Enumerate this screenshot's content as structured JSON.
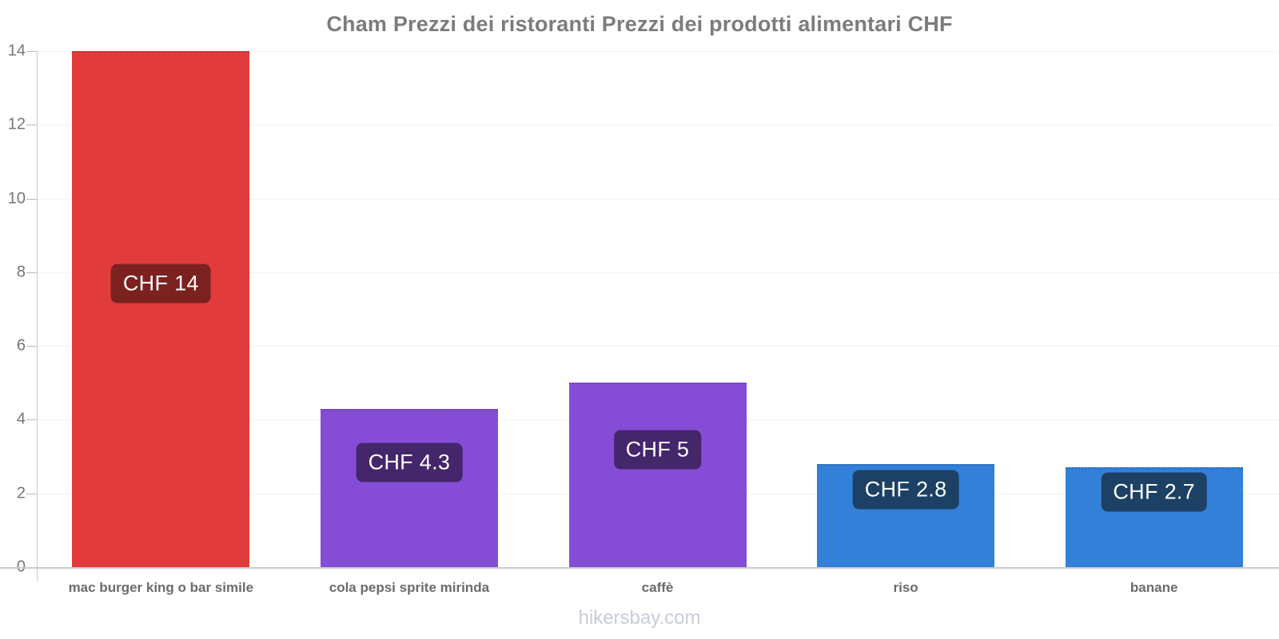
{
  "chart_data": {
    "type": "bar",
    "title": "Cham Prezzi dei ristoranti Prezzi dei prodotti alimentari CHF",
    "categories": [
      "mac burger king o bar simile",
      "cola pepsi sprite mirinda",
      "caffè",
      "riso",
      "banane"
    ],
    "values": [
      14,
      4.3,
      5,
      2.8,
      2.7
    ],
    "value_labels": [
      "CHF 14",
      "CHF 4.3",
      "CHF 5",
      "CHF 2.8",
      "CHF 2.7"
    ],
    "bar_colors": [
      "#e23b3b",
      "#854dd5",
      "#854dd5",
      "#3380d9",
      "#3380d9"
    ],
    "label_bg_colors": [
      "#7b2120",
      "#44266b",
      "#44266b",
      "#1c4164",
      "#1c4164"
    ],
    "currency": "CHF",
    "ylabel": "",
    "xlabel": "",
    "ylim": [
      0,
      14
    ],
    "yticks": [
      0,
      2,
      4,
      6,
      8,
      10,
      12,
      14
    ],
    "grid": true,
    "legend_position": "none"
  },
  "footer": {
    "text": "hikersbay.com"
  },
  "colors": {
    "title_text": "#7c7c7c",
    "axis_line": "#cccccc",
    "baseline": "#c7cad1",
    "gridline": "#f2f2f2",
    "tick_text": "#757575",
    "category_text": "#6b6b6b",
    "value_label_text": "#ffffff",
    "footer_text": "#c8ccd9",
    "background": "#ffffff"
  }
}
